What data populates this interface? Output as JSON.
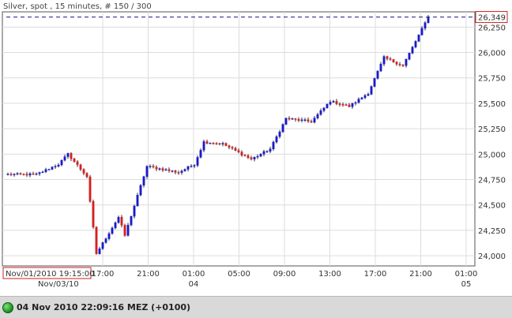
{
  "chart_data": {
    "type": "candlestick",
    "title": "Silver, spot , 15 minutes, # 150 / 300",
    "y_ticks": [
      24000,
      24250,
      24500,
      24750,
      25000,
      25250,
      25500,
      25750,
      26000,
      26250
    ],
    "y_tick_labels": [
      "24,000",
      "24,250",
      "24,500",
      "24,750",
      "25,000",
      "25,250",
      "25,500",
      "25,750",
      "26,000",
      "26,250"
    ],
    "ylim": [
      23900,
      26400
    ],
    "x_ticks": [
      {
        "label": "17:00",
        "sub": ""
      },
      {
        "label": "21:00",
        "sub": ""
      },
      {
        "label": "01:00",
        "sub": "04"
      },
      {
        "label": "05:00",
        "sub": ""
      },
      {
        "label": "09:00",
        "sub": ""
      },
      {
        "label": "13:00",
        "sub": ""
      },
      {
        "label": "17:00",
        "sub": ""
      },
      {
        "label": "21:00",
        "sub": ""
      },
      {
        "label": "01:00",
        "sub": "05"
      }
    ],
    "start_label": "Nov/01/2010 19:15:00",
    "start_sub_label": "Nov/03/10",
    "last_price": 26349,
    "last_price_label": "26,349",
    "up_color": "#1a1acc",
    "down_color": "#d42020",
    "grid": true,
    "path": [
      {
        "n": 10,
        "v": 24800
      },
      {
        "n": 7,
        "v": 24900
      },
      {
        "n": 3,
        "v": 25000
      },
      {
        "n": 6,
        "v": 24780
      },
      {
        "n": 3,
        "v": 24020
      },
      {
        "n": 7,
        "v": 24380
      },
      {
        "n": 2,
        "v": 24200
      },
      {
        "n": 7,
        "v": 24880
      },
      {
        "n": 10,
        "v": 24820
      },
      {
        "n": 5,
        "v": 24900
      },
      {
        "n": 3,
        "v": 25120
      },
      {
        "n": 6,
        "v": 25100
      },
      {
        "n": 9,
        "v": 24950
      },
      {
        "n": 6,
        "v": 25050
      },
      {
        "n": 5,
        "v": 25350
      },
      {
        "n": 8,
        "v": 25320
      },
      {
        "n": 6,
        "v": 25520
      },
      {
        "n": 6,
        "v": 25470
      },
      {
        "n": 6,
        "v": 25600
      },
      {
        "n": 5,
        "v": 25950
      },
      {
        "n": 6,
        "v": 25870
      },
      {
        "n": 8,
        "v": 26349
      }
    ]
  },
  "status": {
    "text": "04 Nov 2010 22:09:16  MEZ (+0100)"
  }
}
